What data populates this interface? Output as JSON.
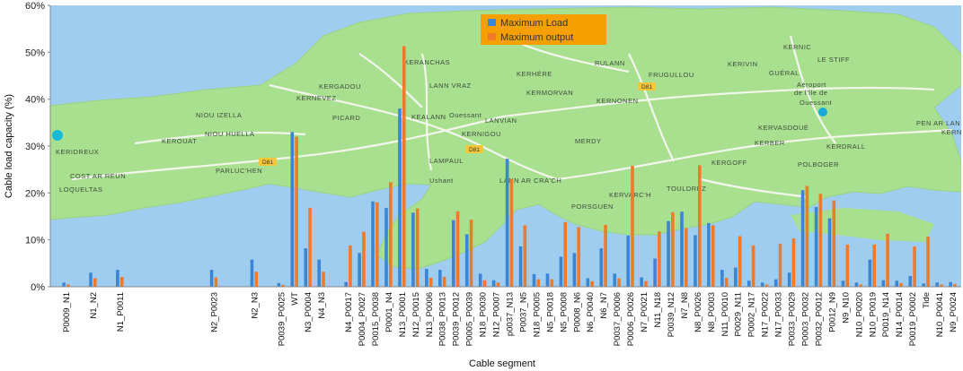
{
  "chart_data": {
    "type": "bar",
    "title": "",
    "xlabel": "Cable segment",
    "ylabel": "Cable load capacity (%)",
    "ylim": [
      0,
      60
    ],
    "yticks": [
      "0%",
      "10%",
      "20%",
      "30%",
      "40%",
      "50%",
      "60%"
    ],
    "grid": false,
    "legend_position": "top-center",
    "colors": {
      "Maximum Load": "#3a86d4",
      "Maximum output": "#f07a2a",
      "legend_bg": "#f5a000"
    },
    "map_labels": [
      "KERNIC",
      "GUÉRAL",
      "LE STIFF",
      "RULANN",
      "KERIVIN",
      "KERANCHAS",
      "KERHÈRE",
      "FRUGULLOU",
      "KERGADOU",
      "LANN VRAZ",
      "KERMORVAN",
      "KERNONEN",
      "KERNEVEZ",
      "Aéroport",
      "de l'île de",
      "Ouessant",
      "NIOU IZELLA",
      "PICARD",
      "KEALANN",
      "Ouessant",
      "LANVIAN",
      "KERNIGOU",
      "PEN AR LAN",
      "NIOU HUELLA",
      "KERVASDOUÉ",
      "KERN",
      "KEROUAT",
      "MERDY",
      "KERBER",
      "KERDRALL",
      "KERIDREUX",
      "LAMPAUL",
      "KERGOFF",
      "PARLUC'HEN",
      "POLBOGER",
      "COST AR REUN",
      "Ushant",
      "LANN AR CRA'CH",
      "TOULDREZ",
      "LOQUELTAS",
      "KERVARC'H",
      "PORSGUEN",
      "D81",
      "D81",
      "D81"
    ],
    "categories": [
      "P0009_N1",
      "",
      "N1_N2",
      "",
      "N1_P0011",
      "",
      "",
      "",
      "",
      "",
      "",
      "N2_P0023",
      "",
      "",
      "N2_N3",
      "",
      "P0039_P0025",
      "WT",
      "N3_P0004",
      "N4_N3",
      "",
      "N4_P0017",
      "P0004_P0027",
      "P0015_P0038",
      "P0001_N4",
      "N13_P0001",
      "N12_P0015",
      "N13_P0006",
      "P0038_P0013",
      "P0039_P0012",
      "P0005_P0039",
      "N18_P0030",
      "N12_P0007",
      "p0037_N13",
      "P0037_N5",
      "N18_P0005",
      "N5_P0018",
      "N5_P0008",
      "P0008_N6",
      "N6_P0040",
      "N6_N7",
      "P0037_P0006",
      "P0006_P0026",
      "N7_P0021",
      "N11_N18",
      "P0039_N12",
      "N7_N8",
      "N8_P0026",
      "N8_P0003",
      "N11_P0010",
      "P0029_N11",
      "P0002_N17",
      "N17_P0022",
      "N17_P0033",
      "P0033_P0029",
      "P0003_P0032",
      "P0032_P0012",
      "P0012_N9",
      "N9_N10",
      "N10_P0020",
      "N10_P0019",
      "P0019_N14",
      "N14_P0014",
      "P0019_P0002",
      "Tide",
      "N10_P0041",
      "N9_P0024"
    ],
    "series": [
      {
        "name": "Maximum Load",
        "values": [
          0.9,
          0,
          3,
          0,
          3.6,
          0,
          0,
          0,
          0,
          0,
          0,
          3.6,
          0,
          0,
          5.8,
          0,
          0.8,
          33,
          8.2,
          5.8,
          0,
          1,
          7.2,
          18.2,
          16.8,
          38,
          15.8,
          3.8,
          3.6,
          14.2,
          11.2,
          2.8,
          1.4,
          27.3,
          8.6,
          2.7,
          2.8,
          6.4,
          7.2,
          1.8,
          8.2,
          2.8,
          10.9,
          2,
          6,
          14,
          16,
          11,
          13.6,
          3.6,
          4.1,
          1.3,
          0.9,
          1.6,
          3,
          20.6,
          17,
          14.6,
          1.3,
          0.9,
          5.8,
          1.4,
          1.3,
          2.3,
          0.7,
          0.9,
          1
        ]
      },
      {
        "name": "Maximum output",
        "values": [
          0.5,
          0,
          1.8,
          0,
          2.1,
          0,
          0,
          0,
          0,
          0,
          0,
          2,
          0,
          0,
          3.2,
          0,
          0.4,
          32,
          16.8,
          3.2,
          0,
          8.8,
          11.7,
          18,
          22.3,
          51.3,
          16.7,
          1.9,
          2.1,
          16.1,
          14.3,
          1.4,
          0.9,
          23,
          13.1,
          1.6,
          1.6,
          13.8,
          12.7,
          1.2,
          13.2,
          1.8,
          25.8,
          1.2,
          11.8,
          15.9,
          12.5,
          25.9,
          13.1,
          1.9,
          10.8,
          8.8,
          0.5,
          9.2,
          10.3,
          21.5,
          19.8,
          18.4,
          9,
          0.5,
          9,
          11.3,
          0.8,
          8.6,
          10.7,
          0.5,
          0.6
        ]
      }
    ]
  }
}
